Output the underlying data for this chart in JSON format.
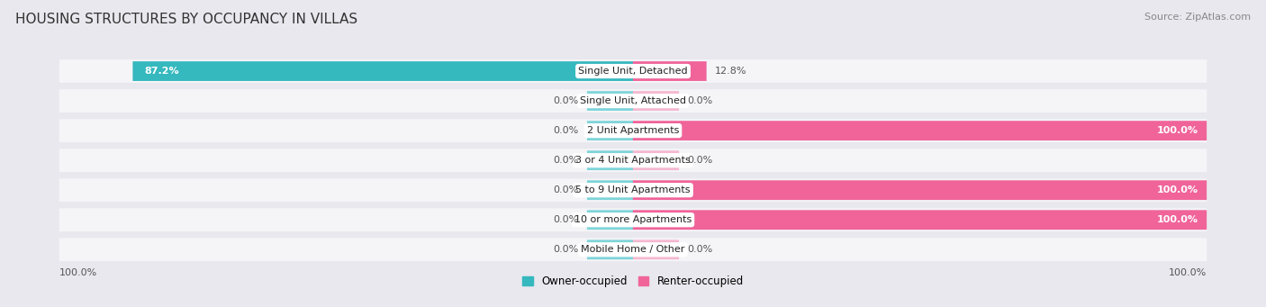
{
  "title": "HOUSING STRUCTURES BY OCCUPANCY IN VILLAS",
  "source": "Source: ZipAtlas.com",
  "categories": [
    "Single Unit, Detached",
    "Single Unit, Attached",
    "2 Unit Apartments",
    "3 or 4 Unit Apartments",
    "5 to 9 Unit Apartments",
    "10 or more Apartments",
    "Mobile Home / Other"
  ],
  "owner_values": [
    87.2,
    0.0,
    0.0,
    0.0,
    0.0,
    0.0,
    0.0
  ],
  "renter_values": [
    12.8,
    0.0,
    100.0,
    0.0,
    100.0,
    100.0,
    0.0
  ],
  "owner_color": "#35b8be",
  "renter_color": "#f0649a",
  "renter_stub_color": "#f5b8d0",
  "owner_stub_color": "#7fd4d8",
  "bg_color": "#e8e8ee",
  "row_bg_color": "#f5f5f8",
  "title_fontsize": 11,
  "source_fontsize": 8,
  "label_fontsize": 8,
  "category_fontsize": 8,
  "legend_fontsize": 8.5,
  "axis_label_fontsize": 8
}
